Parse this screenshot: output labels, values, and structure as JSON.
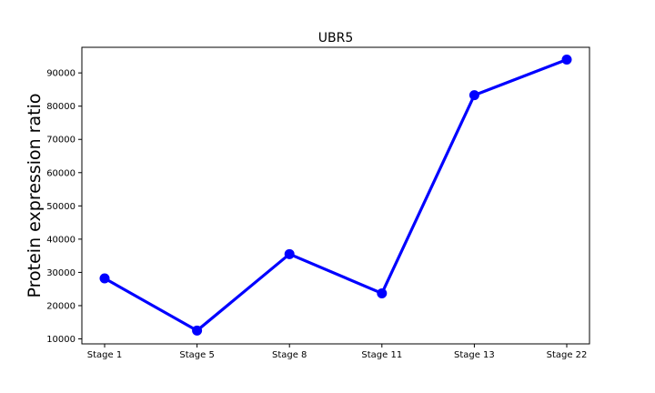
{
  "chart_data": {
    "type": "line",
    "title": "UBR5",
    "xlabel": "",
    "ylabel": "Protein expression ratio",
    "categories": [
      "Stage 1",
      "Stage 5",
      "Stage 8",
      "Stage 11",
      "Stage 13",
      "Stage 22"
    ],
    "series": [
      {
        "values": [
          28200,
          12500,
          35500,
          23700,
          83300,
          94000
        ]
      }
    ],
    "yticks": [
      10000,
      20000,
      30000,
      40000,
      50000,
      60000,
      70000,
      80000,
      90000
    ],
    "ylim": [
      8500,
      97700
    ],
    "grid": false,
    "line_color": "#0000ff"
  }
}
